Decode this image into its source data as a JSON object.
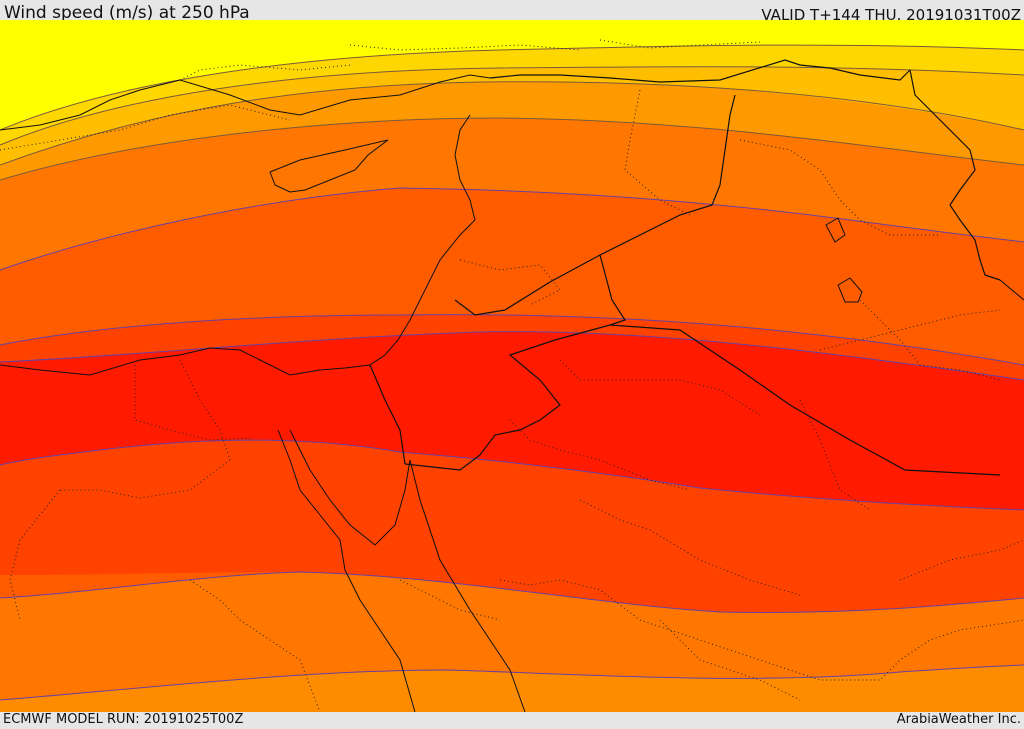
{
  "header": {
    "title": "Wind speed (m/s) at 250 hPa",
    "valid": "VALID T+144 THU. 20191031T00Z"
  },
  "footer": {
    "model_run": "ECMWF MODEL RUN: 20191025T00Z",
    "credit": "ArabiaWeather Inc."
  },
  "map": {
    "field": "wind speed",
    "level_hpa": 250,
    "units": "m/s",
    "colors": {
      "band_1": "#ffff00",
      "band_2": "#ffd700",
      "band_3": "#ffbf00",
      "band_4": "#ff9900",
      "band_5": "#ff7700",
      "band_6": "#ff5c00",
      "band_7": "#ff4200",
      "band_8": "#ff2a00",
      "band_9": "#ff1a00",
      "contour_line": "#6a3fa0",
      "coastline": "#111111",
      "border_dotted": "#222222"
    }
  }
}
